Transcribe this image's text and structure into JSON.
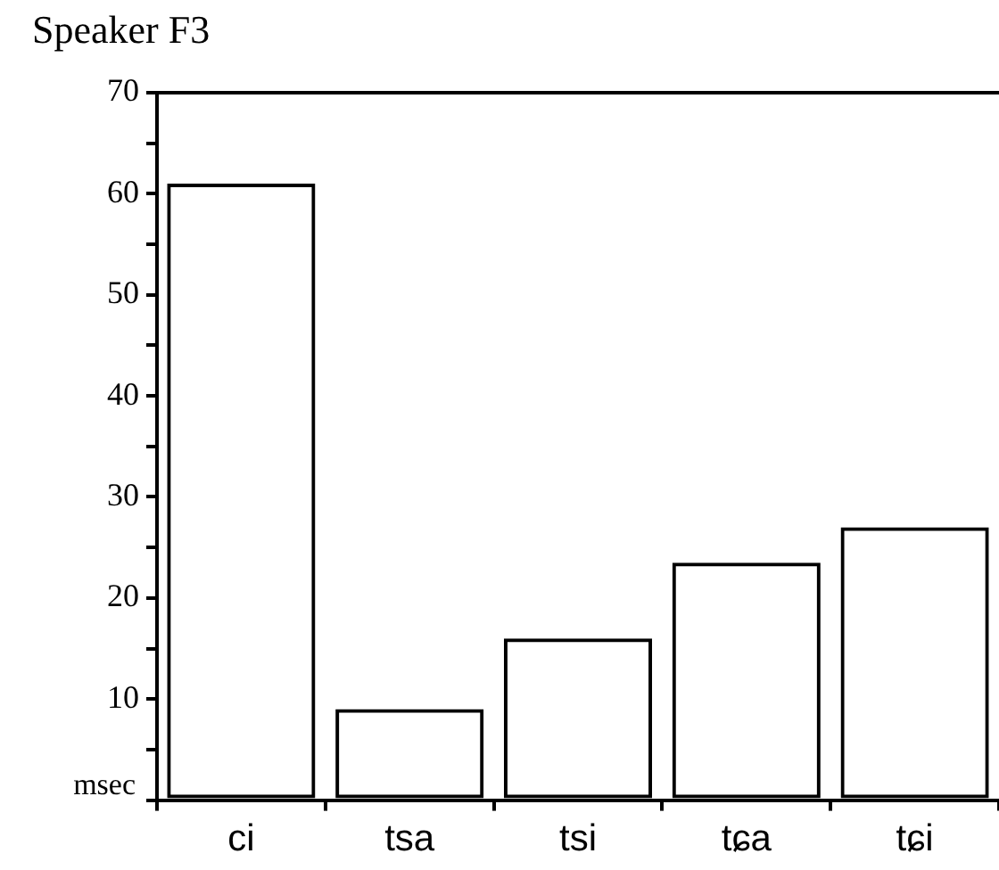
{
  "chart_data": {
    "type": "bar",
    "title": "Speaker F3",
    "ylabel": "msec",
    "categories": [
      "ci",
      "tsa",
      "tsi",
      "tɕa",
      "tɕi"
    ],
    "values": [
      61,
      9,
      16,
      23.5,
      27
    ],
    "color": "#000000",
    "ylim": [
      0,
      70
    ],
    "yticks": [
      {
        "value": 0,
        "label": null
      },
      {
        "value": 5,
        "label": null
      },
      10,
      {
        "value": 15,
        "label": null
      },
      20,
      {
        "value": 25,
        "label": null
      },
      30,
      {
        "value": 35,
        "label": null
      },
      40,
      {
        "value": 45,
        "label": null
      },
      50,
      {
        "value": 55,
        "label": null
      },
      60,
      {
        "value": 65,
        "label": null
      },
      70
    ],
    "grid": false
  }
}
